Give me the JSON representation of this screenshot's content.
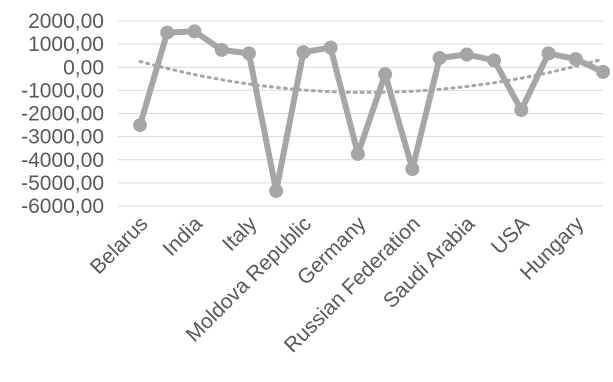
{
  "chart_data": {
    "type": "line",
    "title": "",
    "xlabel": "",
    "ylabel": "",
    "ylim": [
      -6000,
      2000
    ],
    "y_ticks": [
      2000,
      1000,
      0,
      -1000,
      -2000,
      -3000,
      -4000,
      -5000,
      -6000
    ],
    "y_tick_labels": [
      "2000,00",
      "1000,00",
      "0,00",
      "-1000,00",
      "-2000,00",
      "-3000,00",
      "-4000,00",
      "-5000,00",
      "-6000,00"
    ],
    "grid": true,
    "legend": "none",
    "x_tick_labels": [
      "Belarus",
      "India",
      "Italy",
      "Moldova Republic",
      "Germany",
      "Russian Federation",
      "Saudi Arabia",
      "USA",
      "Hungary"
    ],
    "series": [
      {
        "values": [
          -2500,
          1500,
          1550,
          750,
          600,
          -5350,
          650,
          850,
          -3750,
          -300,
          -4400,
          400,
          550,
          300,
          -1850,
          600,
          350,
          -200
        ],
        "color": "#a6a6a6"
      }
    ],
    "trendline": {
      "type": "polynomial",
      "style": "dotted",
      "color": "#a6a6a6"
    }
  }
}
